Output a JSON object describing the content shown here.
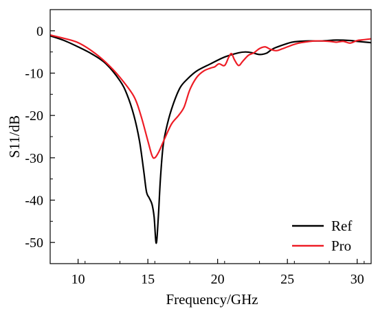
{
  "chart_data": {
    "type": "line",
    "title": "",
    "xlabel": "Frequency/GHz",
    "ylabel": "S11/dB",
    "xlim": [
      8,
      31
    ],
    "ylim": [
      -55,
      5
    ],
    "xticks": [
      10,
      15,
      20,
      25,
      30
    ],
    "yticks": [
      0,
      -10,
      -20,
      -30,
      -40,
      -50
    ],
    "grid": false,
    "legend_position": "bottom-right",
    "series": [
      {
        "name": "Ref",
        "color": "#000000",
        "points": [
          [
            8,
            -1.2
          ],
          [
            9,
            -2.3
          ],
          [
            10,
            -3.8
          ],
          [
            11,
            -5.5
          ],
          [
            12,
            -7.8
          ],
          [
            13,
            -11.8
          ],
          [
            13.5,
            -15
          ],
          [
            14,
            -20
          ],
          [
            14.4,
            -26
          ],
          [
            14.7,
            -33
          ],
          [
            14.9,
            -38
          ],
          [
            15.1,
            -39.5
          ],
          [
            15.3,
            -41
          ],
          [
            15.45,
            -44
          ],
          [
            15.6,
            -50.2
          ],
          [
            15.75,
            -44
          ],
          [
            15.9,
            -35
          ],
          [
            16.1,
            -27
          ],
          [
            16.4,
            -22
          ],
          [
            16.8,
            -17.5
          ],
          [
            17.3,
            -13.5
          ],
          [
            17.8,
            -11.5
          ],
          [
            18.5,
            -9.5
          ],
          [
            19.5,
            -7.8
          ],
          [
            20.5,
            -6.2
          ],
          [
            21.5,
            -5.2
          ],
          [
            22,
            -5.0
          ],
          [
            22.5,
            -5.2
          ],
          [
            23,
            -5.6
          ],
          [
            23.5,
            -5.3
          ],
          [
            24,
            -4.2
          ],
          [
            25,
            -3.0
          ],
          [
            25.5,
            -2.6
          ],
          [
            26.5,
            -2.4
          ],
          [
            27.5,
            -2.4
          ],
          [
            28.5,
            -2.2
          ],
          [
            29.5,
            -2.3
          ],
          [
            30,
            -2.5
          ],
          [
            31,
            -2.8
          ]
        ]
      },
      {
        "name": "Pro",
        "color": "#ee1c25",
        "points": [
          [
            8,
            -1.0
          ],
          [
            9,
            -1.8
          ],
          [
            10,
            -2.8
          ],
          [
            11,
            -4.8
          ],
          [
            12,
            -7.5
          ],
          [
            13,
            -11
          ],
          [
            14,
            -15.5
          ],
          [
            14.5,
            -20
          ],
          [
            15,
            -26
          ],
          [
            15.3,
            -29.5
          ],
          [
            15.5,
            -30
          ],
          [
            15.8,
            -28.5
          ],
          [
            16.2,
            -25.5
          ],
          [
            16.7,
            -22
          ],
          [
            17.2,
            -20
          ],
          [
            17.6,
            -18
          ],
          [
            18,
            -14
          ],
          [
            18.5,
            -11
          ],
          [
            19,
            -9.5
          ],
          [
            19.5,
            -8.8
          ],
          [
            19.8,
            -8.5
          ],
          [
            20.1,
            -7.8
          ],
          [
            20.5,
            -8.2
          ],
          [
            20.8,
            -6.2
          ],
          [
            21,
            -5.4
          ],
          [
            21.2,
            -6.8
          ],
          [
            21.5,
            -8.2
          ],
          [
            21.8,
            -7.2
          ],
          [
            22.2,
            -5.8
          ],
          [
            22.6,
            -5.2
          ],
          [
            23,
            -4.2
          ],
          [
            23.4,
            -3.8
          ],
          [
            23.8,
            -4.4
          ],
          [
            24.2,
            -4.7
          ],
          [
            24.6,
            -4.3
          ],
          [
            25,
            -3.8
          ],
          [
            25.5,
            -3.2
          ],
          [
            26,
            -2.8
          ],
          [
            27,
            -2.4
          ],
          [
            28,
            -2.5
          ],
          [
            28.5,
            -2.7
          ],
          [
            29,
            -2.5
          ],
          [
            29.5,
            -2.9
          ],
          [
            30,
            -2.3
          ],
          [
            30.5,
            -2.1
          ],
          [
            31,
            -1.9
          ]
        ]
      }
    ]
  }
}
